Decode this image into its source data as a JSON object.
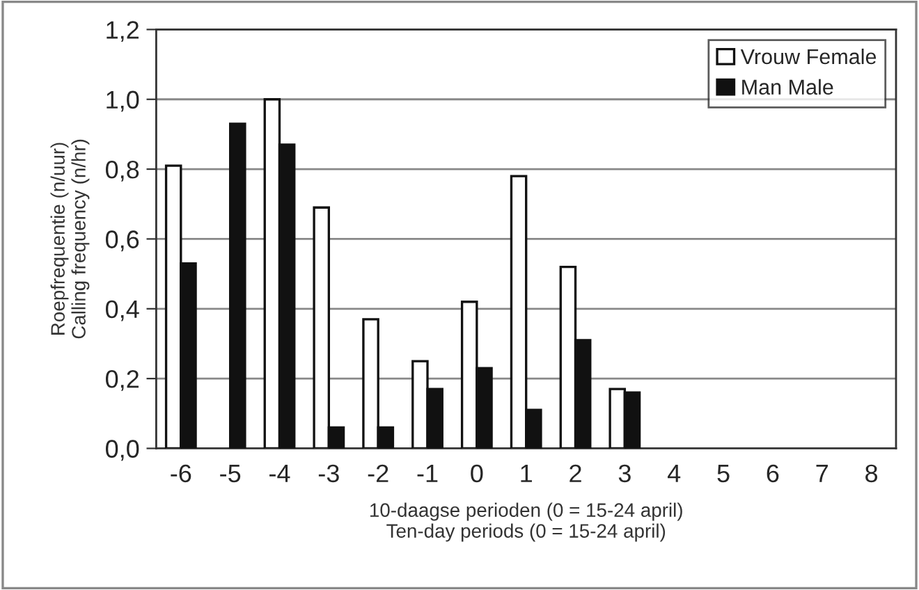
{
  "chart_data": {
    "type": "bar",
    "categories": [
      "-6",
      "-5",
      "-4",
      "-3",
      "-2",
      "-1",
      "0",
      "1",
      "2",
      "3",
      "4",
      "5",
      "6",
      "7",
      "8"
    ],
    "series": [
      {
        "name": "Vrouw Female",
        "color": "#ffffff",
        "values": [
          0.81,
          null,
          1.0,
          0.69,
          0.37,
          0.25,
          0.42,
          0.78,
          0.52,
          0.17,
          null,
          null,
          null,
          null,
          null
        ]
      },
      {
        "name": "Man Male",
        "color": "#111111",
        "values": [
          0.53,
          0.93,
          0.87,
          0.06,
          0.06,
          0.17,
          0.23,
          0.11,
          0.31,
          0.16,
          null,
          null,
          null,
          null,
          null
        ]
      }
    ],
    "xlabel": "10-daagse perioden (0 = 15-24 april)\nTen-day periods (0 = 15-24 april)",
    "ylabel": "Roepfrequentie (n/uur)\nCalling frequency (n/hr)",
    "ylim": [
      0,
      1.2
    ],
    "yticks": [
      {
        "value": 0,
        "label": "0,0"
      },
      {
        "value": 0.2,
        "label": "0,2"
      },
      {
        "value": 0.4,
        "label": "0,4"
      },
      {
        "value": 0.6,
        "label": "0,6"
      },
      {
        "value": 0.8,
        "label": "0,8"
      },
      {
        "value": 1.0,
        "label": "1,0"
      },
      {
        "value": 1.2,
        "label": "1,2"
      }
    ],
    "grid": "y",
    "legend": "top right"
  }
}
